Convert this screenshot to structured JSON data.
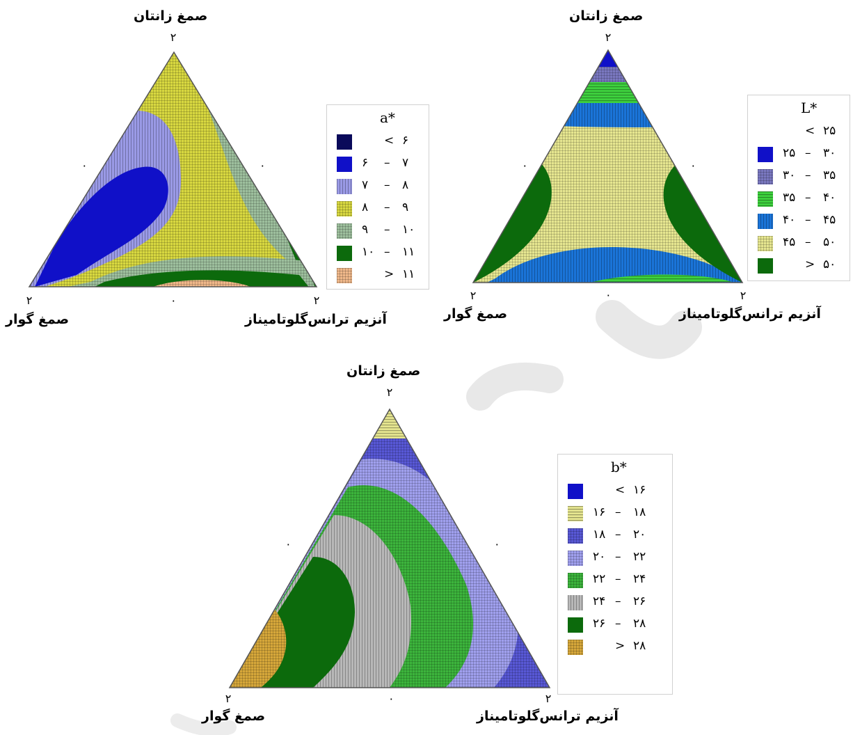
{
  "colors": {
    "navy": "#0a0a5a",
    "blue": "#1010c8",
    "lavender": "#9a9ae6",
    "yellow": "#d8d840",
    "sage": "#9dbf9d",
    "dark_green": "#0c6a0c",
    "peach": "#f0b88a",
    "bright_green": "#3ed23e",
    "mid_blue": "#1a74d8",
    "pale_yellow": "#e6e690",
    "periwinkle": "#5858d6",
    "light_lavender": "#a0a0ee",
    "green": "#3cb43c",
    "gray_stripe": "#b8b8b8",
    "gold": "#d6a73a",
    "hatch_purple": "#7a78c0",
    "watermark": "#e6e6e6"
  },
  "chart_data": [
    {
      "type": "ternary-contour",
      "id": "a-star",
      "title": "",
      "vertex_labels": {
        "top": "صمغ زانتان",
        "left": "صمغ گوار",
        "right": "آنزیم ترانس‌گلوتامیناز"
      },
      "vertex_ticks": {
        "top": "۲",
        "left": "۲",
        "right": "۲"
      },
      "edge_midpoints": [
        "۰",
        "۰",
        "۰"
      ],
      "legend": {
        "title": "a*",
        "entries": [
          {
            "low": "",
            "op": "<",
            "high": "۶",
            "color": "navy"
          },
          {
            "low": "۶",
            "op": "–",
            "high": "۷",
            "color": "blue"
          },
          {
            "low": "۷",
            "op": "–",
            "high": "۸",
            "color": "lavender",
            "pattern": "vlines"
          },
          {
            "low": "۸",
            "op": "–",
            "high": "۹",
            "color": "yellow",
            "pattern": "grid"
          },
          {
            "low": "۹",
            "op": "–",
            "high": "۱۰",
            "color": "sage",
            "pattern": "grid"
          },
          {
            "low": "۱۰",
            "op": "–",
            "high": "۱۱",
            "color": "dark_green"
          },
          {
            "low": "",
            "op": ">",
            "high": "۱۱",
            "color": "peach",
            "pattern": "grid"
          }
        ]
      }
    },
    {
      "type": "ternary-contour",
      "id": "L-star",
      "title": "",
      "vertex_labels": {
        "top": "صمغ زانتان",
        "left": "صمغ گوار",
        "right": "آنزیم ترانس‌گلوتامیناز"
      },
      "vertex_ticks": {
        "top": "۲",
        "left": "۲",
        "right": "۲"
      },
      "edge_midpoints": [
        "۰",
        "۰",
        "۰"
      ],
      "legend": {
        "title": "L*",
        "entries": [
          {
            "low": "",
            "op": "<",
            "high": "۲۵",
            "color": ""
          },
          {
            "low": "۲۵",
            "op": "–",
            "high": "۳۰",
            "color": "blue"
          },
          {
            "low": "۳۰",
            "op": "–",
            "high": "۳۵",
            "color": "hatch_purple",
            "pattern": "grid"
          },
          {
            "low": "۳۵",
            "op": "–",
            "high": "۴۰",
            "color": "bright_green",
            "pattern": "hlines"
          },
          {
            "low": "۴۰",
            "op": "–",
            "high": "۴۵",
            "color": "mid_blue",
            "pattern": "vlines"
          },
          {
            "low": "۴۵",
            "op": "–",
            "high": "۵۰",
            "color": "pale_yellow",
            "pattern": "grid"
          },
          {
            "low": "",
            "op": ">",
            "high": "۵۰",
            "color": "dark_green"
          }
        ]
      }
    },
    {
      "type": "ternary-contour",
      "id": "b-star",
      "title": "",
      "vertex_labels": {
        "top": "صمغ زانتان",
        "left": "صمغ گوار",
        "right": "آنزیم ترانس‌گلوتامیناز"
      },
      "vertex_ticks": {
        "top": "۲",
        "left": "۲",
        "right": "۲"
      },
      "edge_midpoints": [
        "۰",
        "۰",
        "۰"
      ],
      "legend": {
        "title": "b*",
        "entries": [
          {
            "low": "",
            "op": "<",
            "high": "۱۶",
            "color": "blue"
          },
          {
            "low": "۱۶",
            "op": "–",
            "high": "۱۸",
            "color": "pale_yellow",
            "pattern": "hlines"
          },
          {
            "low": "۱۸",
            "op": "–",
            "high": "۲۰",
            "color": "periwinkle",
            "pattern": "grid"
          },
          {
            "low": "۲۰",
            "op": "–",
            "high": "۲۲",
            "color": "light_lavender",
            "pattern": "grid"
          },
          {
            "low": "۲۲",
            "op": "–",
            "high": "۲۴",
            "color": "green",
            "pattern": "grid"
          },
          {
            "low": "۲۴",
            "op": "–",
            "high": "۲۶",
            "color": "gray_stripe",
            "pattern": "vlines"
          },
          {
            "low": "۲۶",
            "op": "–",
            "high": "۲۸",
            "color": "dark_green"
          },
          {
            "low": "",
            "op": ">",
            "high": "۲۸",
            "color": "gold",
            "pattern": "grid"
          }
        ]
      }
    }
  ]
}
